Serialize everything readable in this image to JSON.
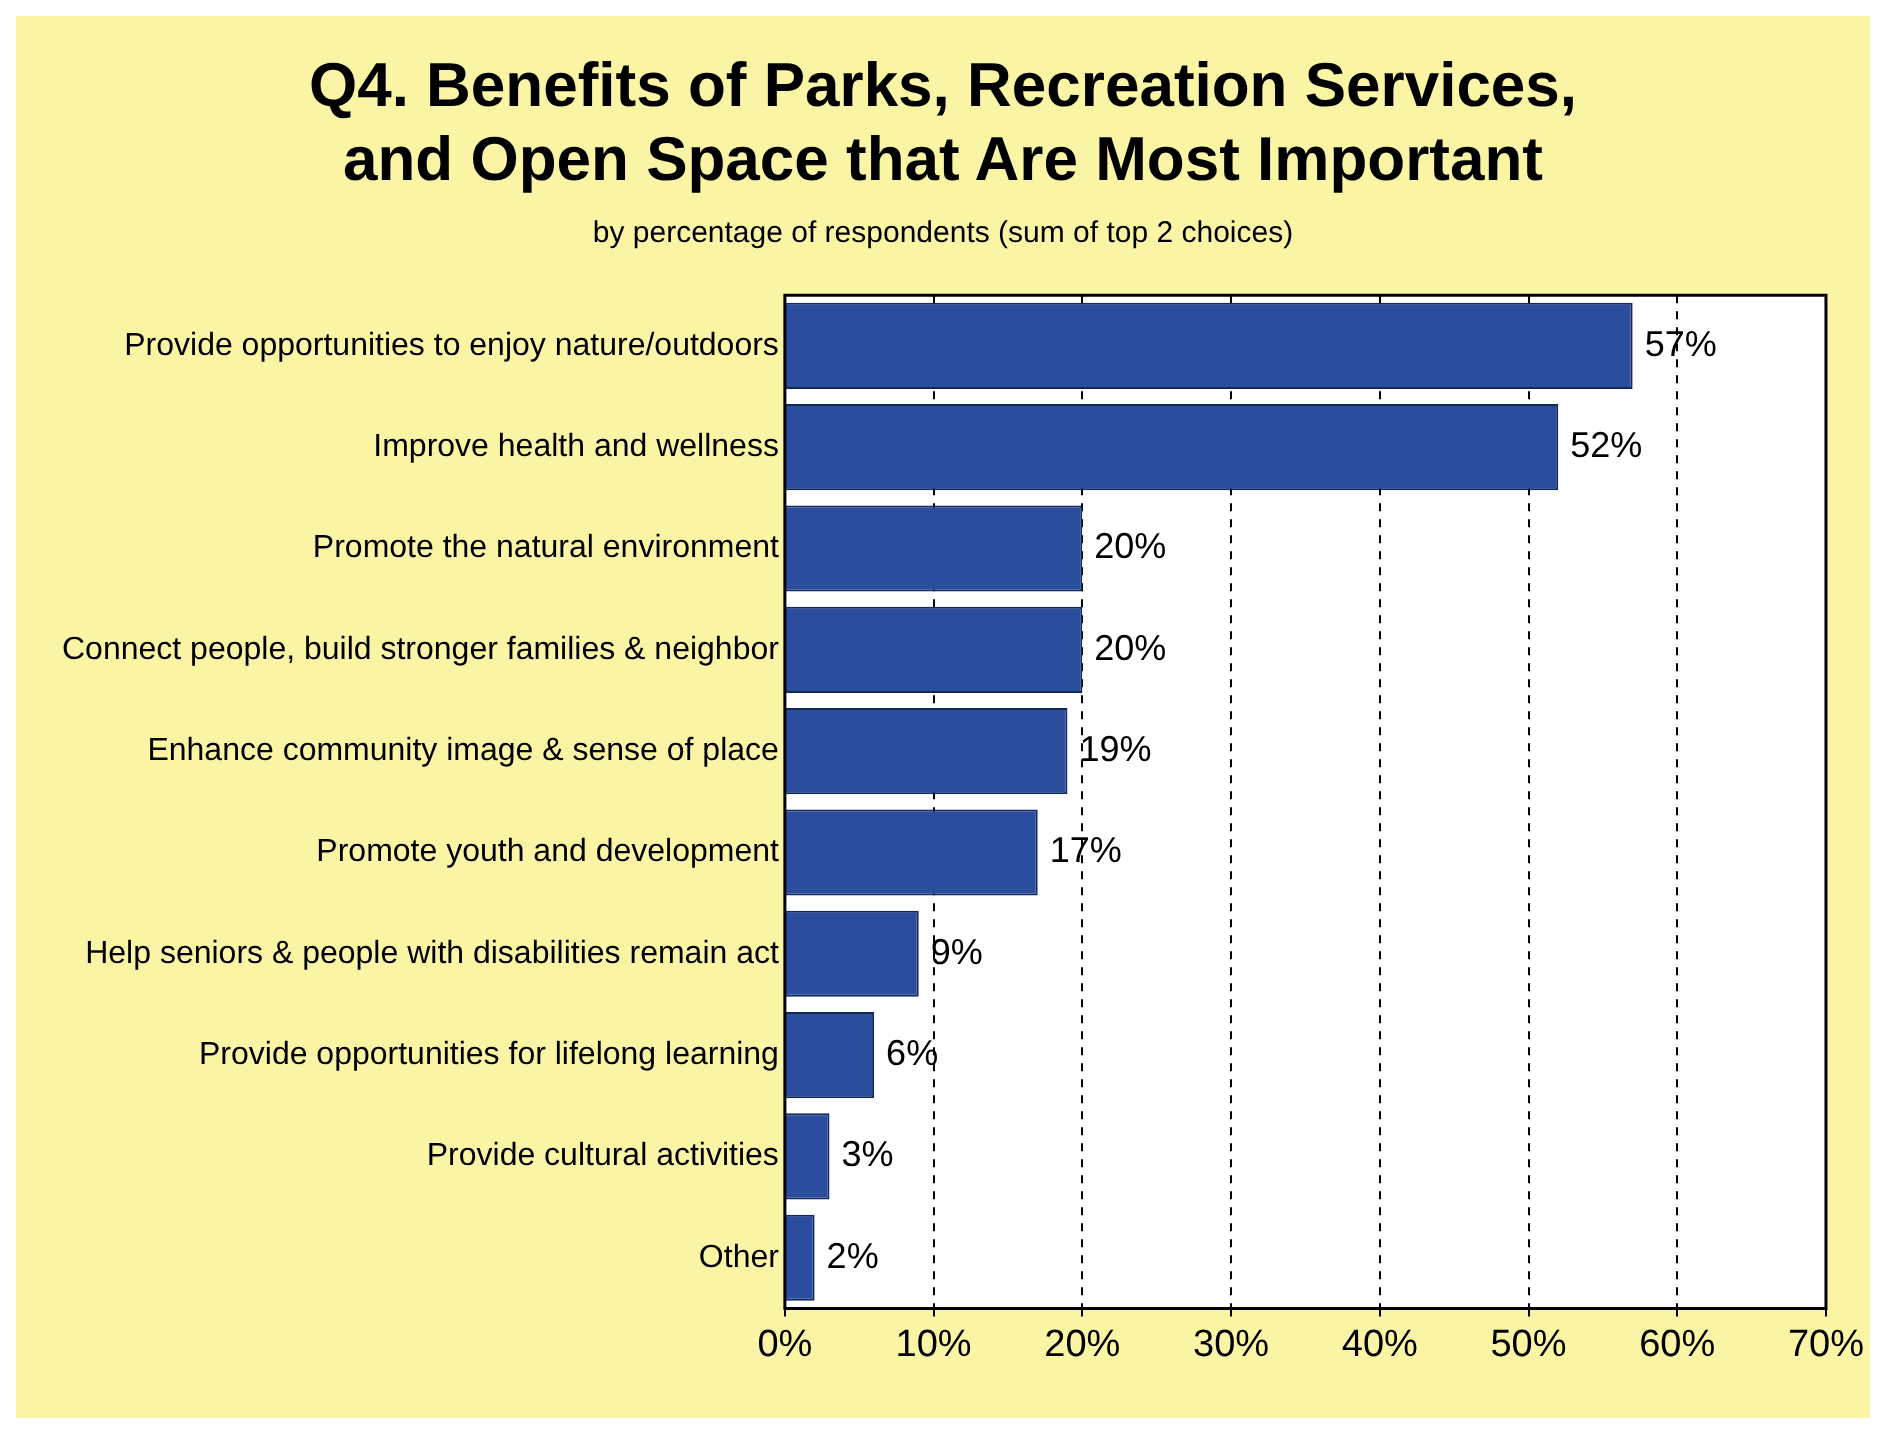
{
  "chart_data": {
    "type": "bar",
    "orientation": "horizontal",
    "title": "Q4. Benefits of Parks, Recreation Services, and Open Space that Are Most Important",
    "subtitle": "by percentage of respondents (sum of top 2 choices)",
    "categories": [
      "Provide opportunities to enjoy nature/outdoors",
      "Improve health and wellness",
      "Promote the natural environment",
      "Connect people, build stronger families & neighbor",
      "Enhance community image & sense of place",
      "Promote youth and development",
      "Help seniors & people with disabilities remain act",
      "Provide opportunities for lifelong learning",
      "Provide cultural activities",
      "Other"
    ],
    "values": [
      57,
      52,
      20,
      20,
      19,
      17,
      9,
      6,
      3,
      2
    ],
    "value_labels": [
      "57%",
      "52%",
      "20%",
      "20%",
      "19%",
      "17%",
      "9%",
      "6%",
      "3%",
      "2%"
    ],
    "color": "#2a4d9e",
    "xlim": [
      0,
      70
    ],
    "xticks": [
      {
        "value": 0,
        "label": "0%"
      },
      {
        "value": 10,
        "label": "10%"
      },
      {
        "value": 20,
        "label": "20%"
      },
      {
        "value": 30,
        "label": "30%"
      },
      {
        "value": 40,
        "label": "40%"
      },
      {
        "value": 50,
        "label": "50%"
      },
      {
        "value": 60,
        "label": "60%"
      },
      {
        "value": 70,
        "label": "70%"
      }
    ],
    "grid": "x",
    "legend": false
  }
}
